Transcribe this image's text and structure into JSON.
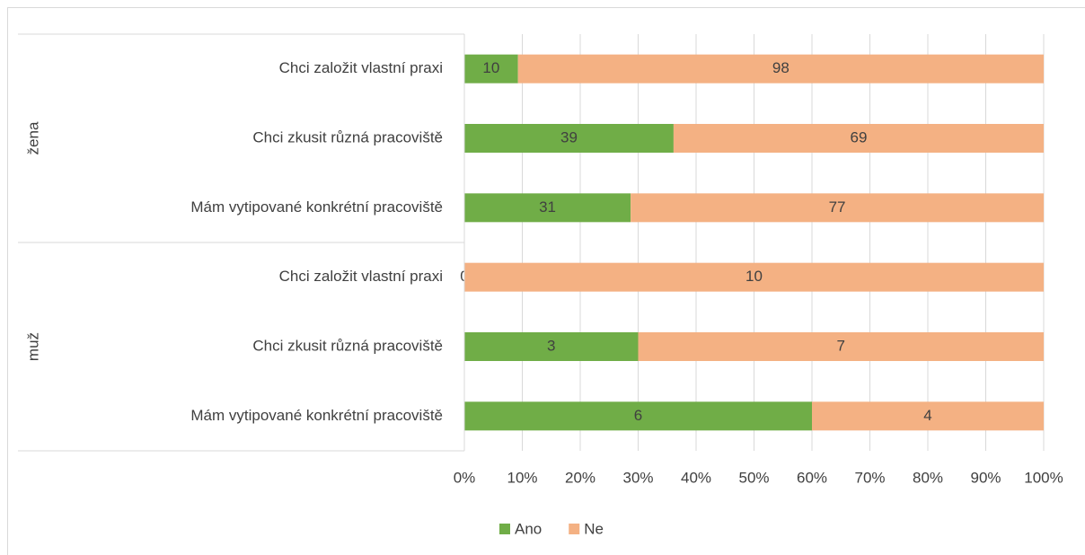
{
  "chart_data": {
    "type": "stacked_bar_percent",
    "orientation": "horizontal",
    "groups": [
      {
        "label": "žena",
        "categories": [
          "Chci založit vlastní praxi",
          "Chci zkusit různá pracoviště",
          "Mám vytipované konkrétní pracoviště"
        ]
      },
      {
        "label": "muž",
        "categories": [
          "Chci založit vlastní praxi",
          "Chci zkusit různá pracoviště",
          "Mám vytipované konkrétní pracoviště"
        ]
      }
    ],
    "series": [
      {
        "name": "Ano",
        "color": "#70ad47",
        "values": [
          10,
          39,
          31,
          0,
          3,
          6
        ]
      },
      {
        "name": "Ne",
        "color": "#f4b183",
        "values": [
          98,
          69,
          77,
          10,
          7,
          4
        ]
      }
    ],
    "xlim": [
      0,
      100
    ],
    "xticks": [
      {
        "value": 0,
        "label": "0%"
      },
      {
        "value": 10,
        "label": "10%"
      },
      {
        "value": 20,
        "label": "20%"
      },
      {
        "value": 30,
        "label": "30%"
      },
      {
        "value": 40,
        "label": "40%"
      },
      {
        "value": 50,
        "label": "50%"
      },
      {
        "value": 60,
        "label": "60%"
      },
      {
        "value": 70,
        "label": "70%"
      },
      {
        "value": 80,
        "label": "80%"
      },
      {
        "value": 90,
        "label": "90%"
      },
      {
        "value": 100,
        "label": "100%"
      }
    ],
    "grid": true,
    "legend": "bottom"
  }
}
